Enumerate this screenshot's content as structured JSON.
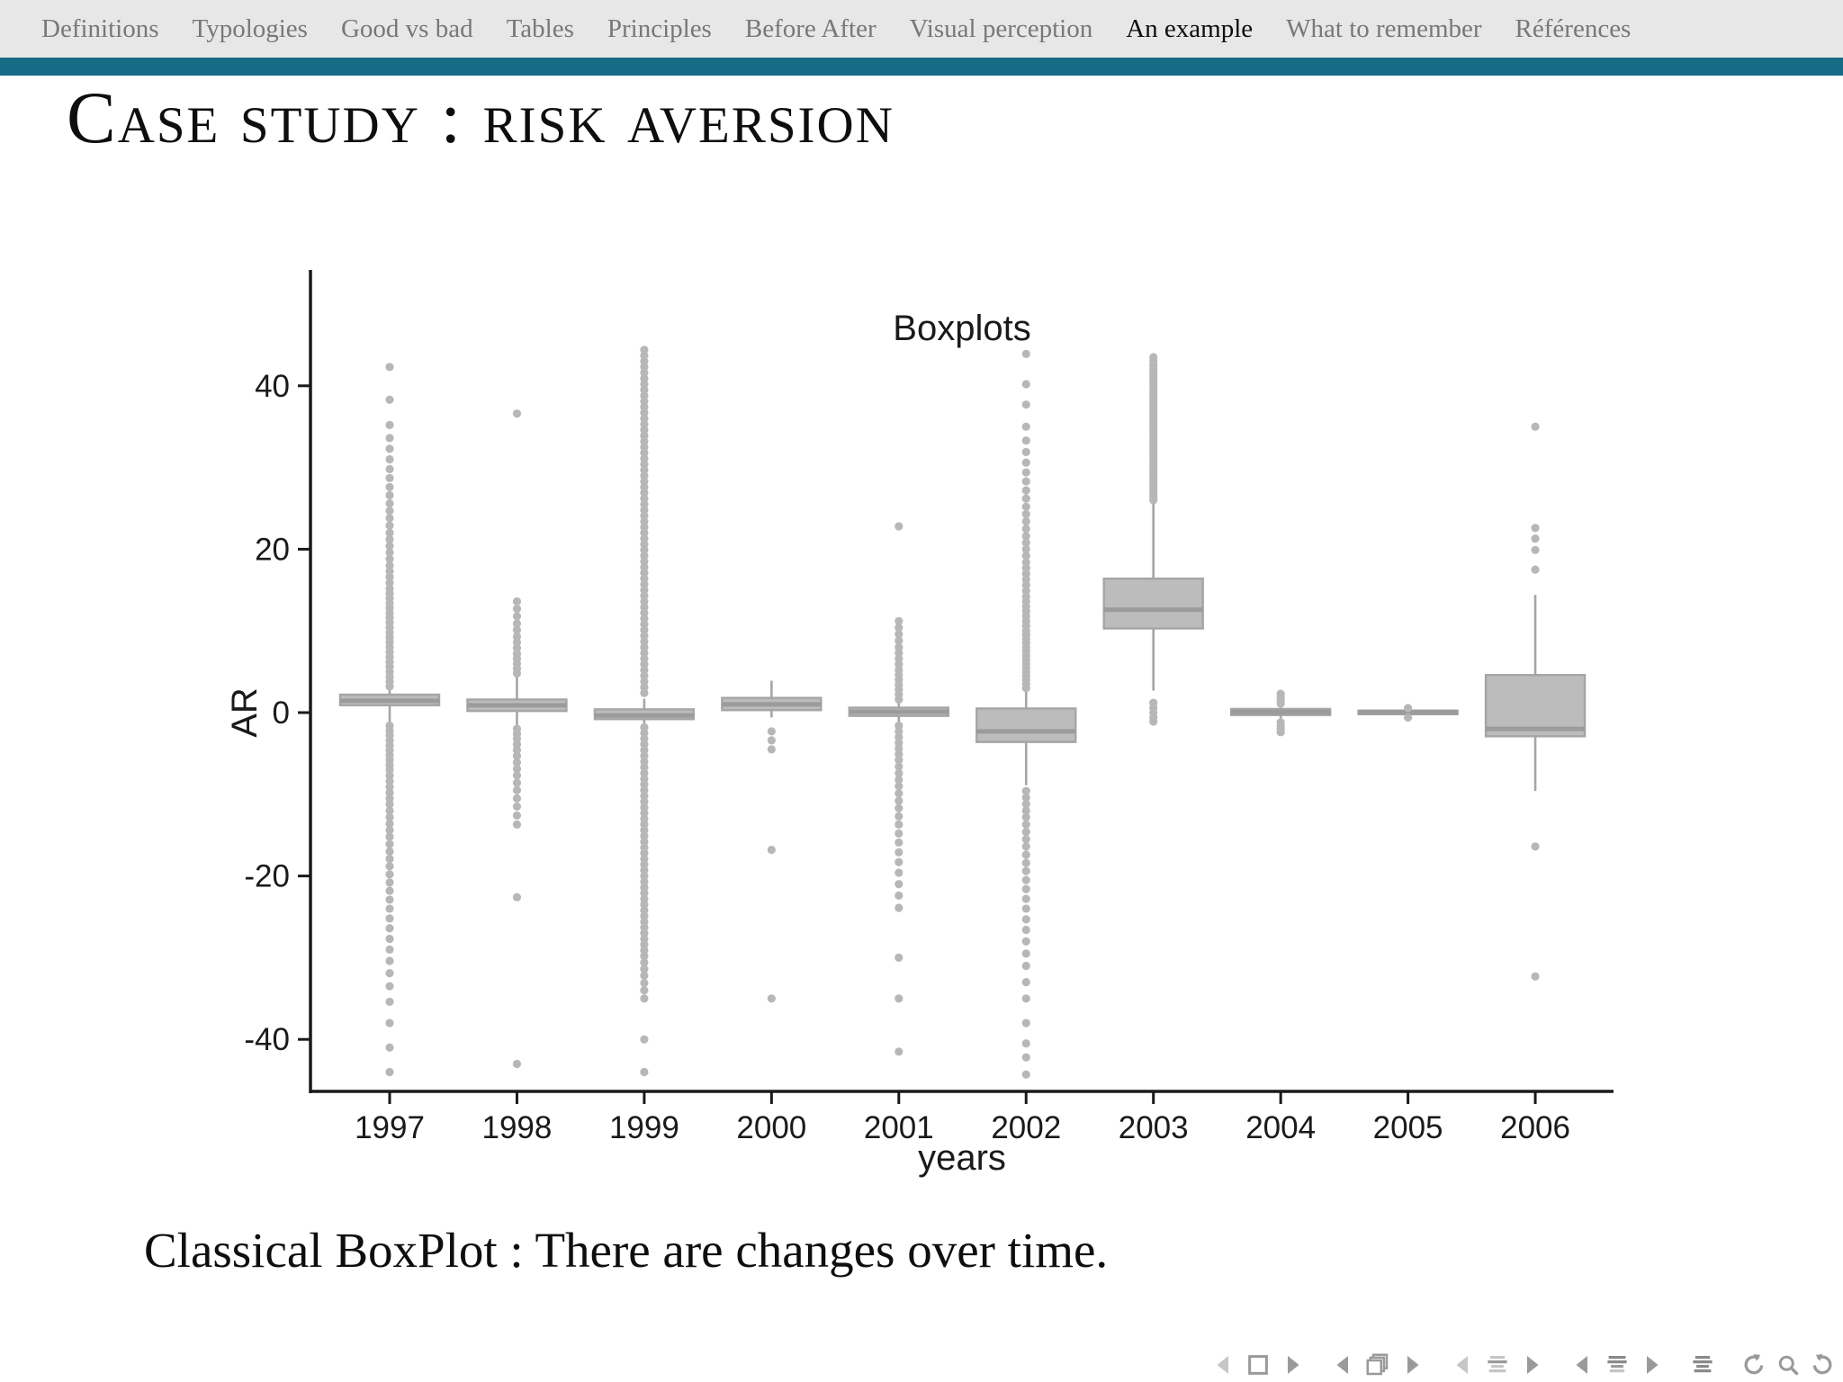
{
  "nav": {
    "items": [
      {
        "label": "Definitions",
        "active": false
      },
      {
        "label": "Typologies",
        "active": false
      },
      {
        "label": "Good vs bad",
        "active": false
      },
      {
        "label": "Tables",
        "active": false
      },
      {
        "label": "Principles",
        "active": false
      },
      {
        "label": "Before After",
        "active": false
      },
      {
        "label": "Visual perception",
        "active": false
      },
      {
        "label": "An example",
        "active": true
      },
      {
        "label": "What to remember",
        "active": false
      },
      {
        "label": "Références",
        "active": false
      }
    ]
  },
  "slide": {
    "title": "Case study : risk aversion",
    "caption": "Classical BoxPlot : There are changes over time."
  },
  "chart_data": {
    "type": "boxplot",
    "title": "Boxplots",
    "xlabel": "years",
    "ylabel": "AR",
    "ylim": [
      -46,
      55
    ],
    "yticks": [
      40,
      20,
      0,
      -20,
      -40
    ],
    "categories": [
      "1997",
      "1998",
      "1999",
      "2000",
      "2001",
      "2002",
      "2003",
      "2004",
      "2005",
      "2006"
    ],
    "series": [
      {
        "label": "1997",
        "q1": 0.9,
        "median": 1.45,
        "q3": 2.2,
        "whisker_low": -1.4,
        "whisker_high": 3.0,
        "outliers": [
          3.2,
          3.8,
          4.4,
          5.0,
          5.6,
          6.2,
          6.8,
          7.4,
          8.0,
          8.6,
          9.2,
          9.8,
          10.4,
          11.0,
          11.6,
          12.2,
          12.8,
          13.4,
          14.0,
          14.6,
          15.2,
          15.9,
          16.6,
          17.3,
          18.0,
          18.8,
          19.6,
          20.4,
          21.2,
          22.0,
          22.9,
          23.8,
          24.7,
          25.6,
          26.6,
          27.6,
          28.7,
          29.8,
          31.0,
          32.3,
          33.6,
          35.2,
          38.3,
          42.3,
          -1.6,
          -2.2,
          -2.8,
          -3.4,
          -4.0,
          -4.6,
          -5.2,
          -5.8,
          -6.4,
          -7.0,
          -7.7,
          -8.4,
          -9.1,
          -9.8,
          -10.5,
          -11.2,
          -12.0,
          -12.8,
          -13.6,
          -14.4,
          -15.2,
          -16.1,
          -17.0,
          -17.9,
          -18.8,
          -19.8,
          -20.8,
          -21.8,
          -22.9,
          -24.0,
          -25.2,
          -26.4,
          -27.7,
          -29.0,
          -30.4,
          -31.9,
          -33.5,
          -35.4,
          -38.0,
          -41.0,
          -44.0
        ]
      },
      {
        "label": "1998",
        "q1": 0.2,
        "median": 0.9,
        "q3": 1.6,
        "whisker_low": -1.6,
        "whisker_high": 4.4,
        "outliers": [
          4.8,
          5.4,
          6.0,
          6.6,
          7.2,
          7.9,
          8.6,
          9.3,
          10.1,
          10.9,
          11.8,
          12.7,
          13.6,
          36.6,
          -2.0,
          -2.6,
          -3.2,
          -3.9,
          -4.6,
          -5.3,
          -6.1,
          -6.9,
          -7.7,
          -8.6,
          -9.5,
          -10.5,
          -11.5,
          -12.6,
          -13.7,
          -22.6,
          -43.0
        ]
      },
      {
        "label": "1999",
        "q1": -0.8,
        "median": -0.35,
        "q3": 0.4,
        "whisker_low": -1.8,
        "whisker_high": 1.7,
        "outliers": [
          2.4,
          3.1,
          3.8,
          4.5,
          5.2,
          5.9,
          6.6,
          7.3,
          8.0,
          8.7,
          9.4,
          10.1,
          10.8,
          11.5,
          12.2,
          12.9,
          13.6,
          14.3,
          15.0,
          15.7,
          16.4,
          17.1,
          17.8,
          18.5,
          19.2,
          19.9,
          20.6,
          21.3,
          22.0,
          22.7,
          23.4,
          24.1,
          24.8,
          25.5,
          26.2,
          26.9,
          27.6,
          28.3,
          29.0,
          29.7,
          30.4,
          31.1,
          31.8,
          32.5,
          33.2,
          33.9,
          34.6,
          35.3,
          36.0,
          36.7,
          37.4,
          38.1,
          38.8,
          39.5,
          40.2,
          40.9,
          41.6,
          42.3,
          43.0,
          43.7,
          44.4,
          -1.8,
          -2.5,
          -3.2,
          -3.9,
          -4.6,
          -5.3,
          -6.0,
          -6.7,
          -7.4,
          -8.1,
          -8.8,
          -9.5,
          -10.2,
          -10.9,
          -11.6,
          -12.3,
          -13.0,
          -13.7,
          -14.4,
          -15.1,
          -15.8,
          -16.5,
          -17.2,
          -17.9,
          -18.6,
          -19.3,
          -20.0,
          -20.7,
          -21.4,
          -22.1,
          -22.8,
          -23.5,
          -24.2,
          -24.9,
          -25.6,
          -26.3,
          -27.0,
          -27.7,
          -28.4,
          -29.1,
          -29.8,
          -30.6,
          -31.4,
          -32.2,
          -33.1,
          -34.0,
          -35.0,
          -40.0,
          -44.0
        ]
      },
      {
        "label": "2000",
        "q1": 0.3,
        "median": 1.0,
        "q3": 1.8,
        "whisker_low": -0.6,
        "whisker_high": 3.9,
        "outliers": [
          -2.3,
          -3.4,
          -4.5,
          -16.8,
          -35.0
        ]
      },
      {
        "label": "2001",
        "q1": -0.4,
        "median": 0.1,
        "q3": 0.6,
        "whisker_low": -1.3,
        "whisker_high": 1.4,
        "outliers": [
          1.6,
          2.2,
          2.8,
          3.4,
          4.0,
          4.6,
          5.2,
          5.9,
          6.6,
          7.3,
          8.0,
          8.8,
          9.6,
          10.4,
          11.2,
          22.8,
          -1.6,
          -2.3,
          -3.0,
          -3.7,
          -4.4,
          -5.1,
          -5.8,
          -6.6,
          -7.4,
          -8.2,
          -9.0,
          -9.9,
          -10.8,
          -11.7,
          -12.7,
          -13.7,
          -14.8,
          -15.9,
          -17.1,
          -18.3,
          -19.6,
          -21.0,
          -22.4,
          -23.9,
          -30.0,
          -35.0,
          -41.5
        ]
      },
      {
        "label": "2002",
        "q1": -3.6,
        "median": -2.3,
        "q3": 0.5,
        "whisker_low": -8.9,
        "whisker_high": 2.7,
        "outliers": [
          3.0,
          3.5,
          4.0,
          4.5,
          5.0,
          5.5,
          6.0,
          6.5,
          7.0,
          7.5,
          8.0,
          8.5,
          9.0,
          9.5,
          10.0,
          10.6,
          11.2,
          11.8,
          12.4,
          13.0,
          13.6,
          14.2,
          14.9,
          15.6,
          16.3,
          17.0,
          17.7,
          18.4,
          19.2,
          20.0,
          20.8,
          21.6,
          22.5,
          23.4,
          24.3,
          25.2,
          26.2,
          27.2,
          28.3,
          29.4,
          30.6,
          31.9,
          33.3,
          35.0,
          37.7,
          40.2,
          43.9,
          -9.6,
          -10.4,
          -11.2,
          -12.0,
          -12.8,
          -13.7,
          -14.6,
          -15.5,
          -16.4,
          -17.4,
          -18.4,
          -19.4,
          -20.5,
          -21.6,
          -22.8,
          -24.0,
          -25.3,
          -26.6,
          -28.0,
          -29.5,
          -31.0,
          -33.0,
          -35.0,
          -38.0,
          -40.5,
          -42.2,
          -44.3
        ]
      },
      {
        "label": "2003",
        "q1": 10.3,
        "median": 12.6,
        "q3": 16.4,
        "whisker_low": 2.7,
        "whisker_high": 25.7,
        "outliers": [
          26.0,
          26.4,
          26.8,
          27.2,
          27.6,
          28.0,
          28.4,
          28.8,
          29.2,
          29.6,
          30.0,
          30.4,
          30.8,
          31.2,
          31.6,
          32.0,
          32.4,
          32.8,
          33.2,
          33.6,
          34.0,
          34.4,
          34.8,
          35.2,
          35.6,
          36.0,
          36.4,
          36.8,
          37.2,
          37.6,
          38.0,
          38.4,
          38.8,
          39.2,
          39.6,
          40.0,
          40.4,
          40.8,
          41.2,
          41.6,
          42.0,
          42.5,
          43.0,
          43.5,
          1.2,
          0.6,
          0.0,
          -0.6,
          -1.1
        ]
      },
      {
        "label": "2004",
        "q1": -0.3,
        "median": 0.05,
        "q3": 0.45,
        "whisker_low": -0.9,
        "whisker_high": 0.9,
        "outliers": [
          2.3,
          1.9,
          1.5,
          1.1,
          -1.2,
          -1.6,
          -2.0,
          -2.4
        ]
      },
      {
        "label": "2005",
        "q1": -0.2,
        "median": 0.02,
        "q3": 0.25,
        "whisker_low": -0.45,
        "whisker_high": 0.45,
        "outliers": [
          0.55,
          -0.6
        ]
      },
      {
        "label": "2006",
        "q1": -2.9,
        "median": -2.0,
        "q3": 4.6,
        "whisker_low": -9.6,
        "whisker_high": 14.4,
        "outliers": [
          35.0,
          22.6,
          21.3,
          19.9,
          17.5,
          -16.4,
          -32.3
        ]
      }
    ]
  },
  "beamer_nav": {
    "groups": [
      {
        "items": [
          "step-prev",
          "frame",
          "step-next"
        ]
      },
      {
        "items": [
          "frame-prev",
          "frames-stack",
          "frame-next"
        ]
      },
      {
        "items": [
          "subsection-prev",
          "subsection-list",
          "subsection-next"
        ]
      },
      {
        "items": [
          "section-prev",
          "section-list",
          "section-next"
        ]
      },
      {
        "items": [
          "appendix-list"
        ]
      },
      {
        "items": [
          "history-back",
          "search",
          "history-forward"
        ]
      }
    ]
  },
  "colors": {
    "accent_teal": "#166b85",
    "nav_bg": "#e7e7e7",
    "nav_text": "#787878",
    "nav_active_text": "#0e0e0e",
    "box_fill": "#bcbcbc",
    "box_stroke": "#a5a5a5",
    "median_line": "#9b9b9b",
    "outlier_dot": "#b7b7b7",
    "axis": "#1a1a1a",
    "icon_gray_light": "#c6c6c6",
    "icon_gray_mid": "#9a9a9a",
    "icon_gray_dark": "#8a8a8a"
  }
}
